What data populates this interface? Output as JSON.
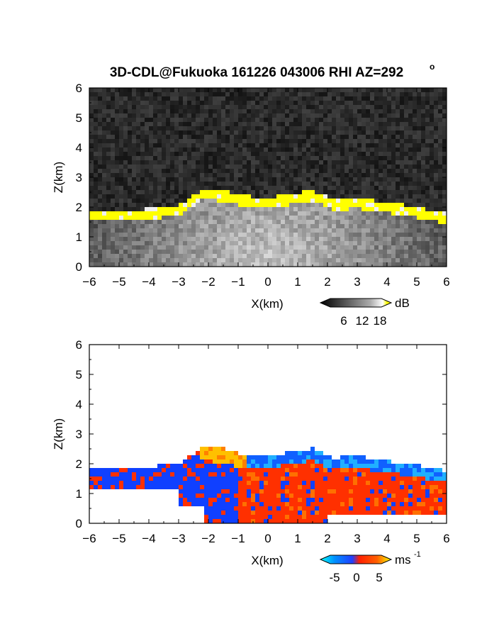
{
  "figure": {
    "title": "3D-CDL@Fukuoka 161226 043006 RHI AZ=292",
    "title_superscript": "o"
  },
  "chart_data": [
    {
      "type": "heatmap",
      "variable": "backscatter intensity",
      "xlabel": "X(km)",
      "ylabel": "Z(km)",
      "xlim": [
        -6,
        6
      ],
      "ylim": [
        0,
        6
      ],
      "xticks": [
        -6,
        -5,
        -4,
        -3,
        -2,
        -1,
        0,
        1,
        2,
        3,
        4,
        5,
        6
      ],
      "yticks": [
        0,
        1,
        2,
        3,
        4,
        5,
        6
      ],
      "grid": false,
      "colorbar": {
        "unit": "dB",
        "tick_labels": [
          "6",
          "12",
          "18"
        ],
        "range": [
          0,
          20
        ],
        "colors": [
          "#000000",
          "#555555",
          "#aaaaaa",
          "#ffffff",
          "#ffff00"
        ]
      },
      "cloud_base_km": [
        {
          "x": -6.0,
          "z": 1.85
        },
        {
          "x": -5.0,
          "z": 1.85
        },
        {
          "x": -4.0,
          "z": 1.95
        },
        {
          "x": -3.0,
          "z": 2.05
        },
        {
          "x": -2.2,
          "z": 2.6
        },
        {
          "x": -1.5,
          "z": 2.55
        },
        {
          "x": -1.0,
          "z": 2.4
        },
        {
          "x": 0.0,
          "z": 2.3
        },
        {
          "x": 0.8,
          "z": 2.45
        },
        {
          "x": 1.5,
          "z": 2.55
        },
        {
          "x": 2.2,
          "z": 2.25
        },
        {
          "x": 3.0,
          "z": 2.3
        },
        {
          "x": 4.0,
          "z": 2.15
        },
        {
          "x": 5.0,
          "z": 2.0
        },
        {
          "x": 6.0,
          "z": 1.8
        }
      ]
    },
    {
      "type": "heatmap",
      "variable": "radial velocity",
      "xlabel": "X(km)",
      "ylabel": "Z(km)",
      "xlim": [
        -6,
        6
      ],
      "ylim": [
        0,
        6
      ],
      "xticks": [
        -6,
        -5,
        -4,
        -3,
        -2,
        -1,
        0,
        1,
        2,
        3,
        4,
        5,
        6
      ],
      "yticks": [
        0,
        1,
        2,
        3,
        4,
        5,
        6
      ],
      "grid": false,
      "colorbar": {
        "unit": "ms",
        "unit_superscript": "-1",
        "tick_labels": [
          "-5",
          "0",
          "5"
        ],
        "range": [
          -7,
          7
        ],
        "colors": [
          "#00ffff",
          "#0060ff",
          "#2040ff",
          "#ff2000",
          "#ff6000",
          "#ffff00"
        ]
      }
    }
  ]
}
